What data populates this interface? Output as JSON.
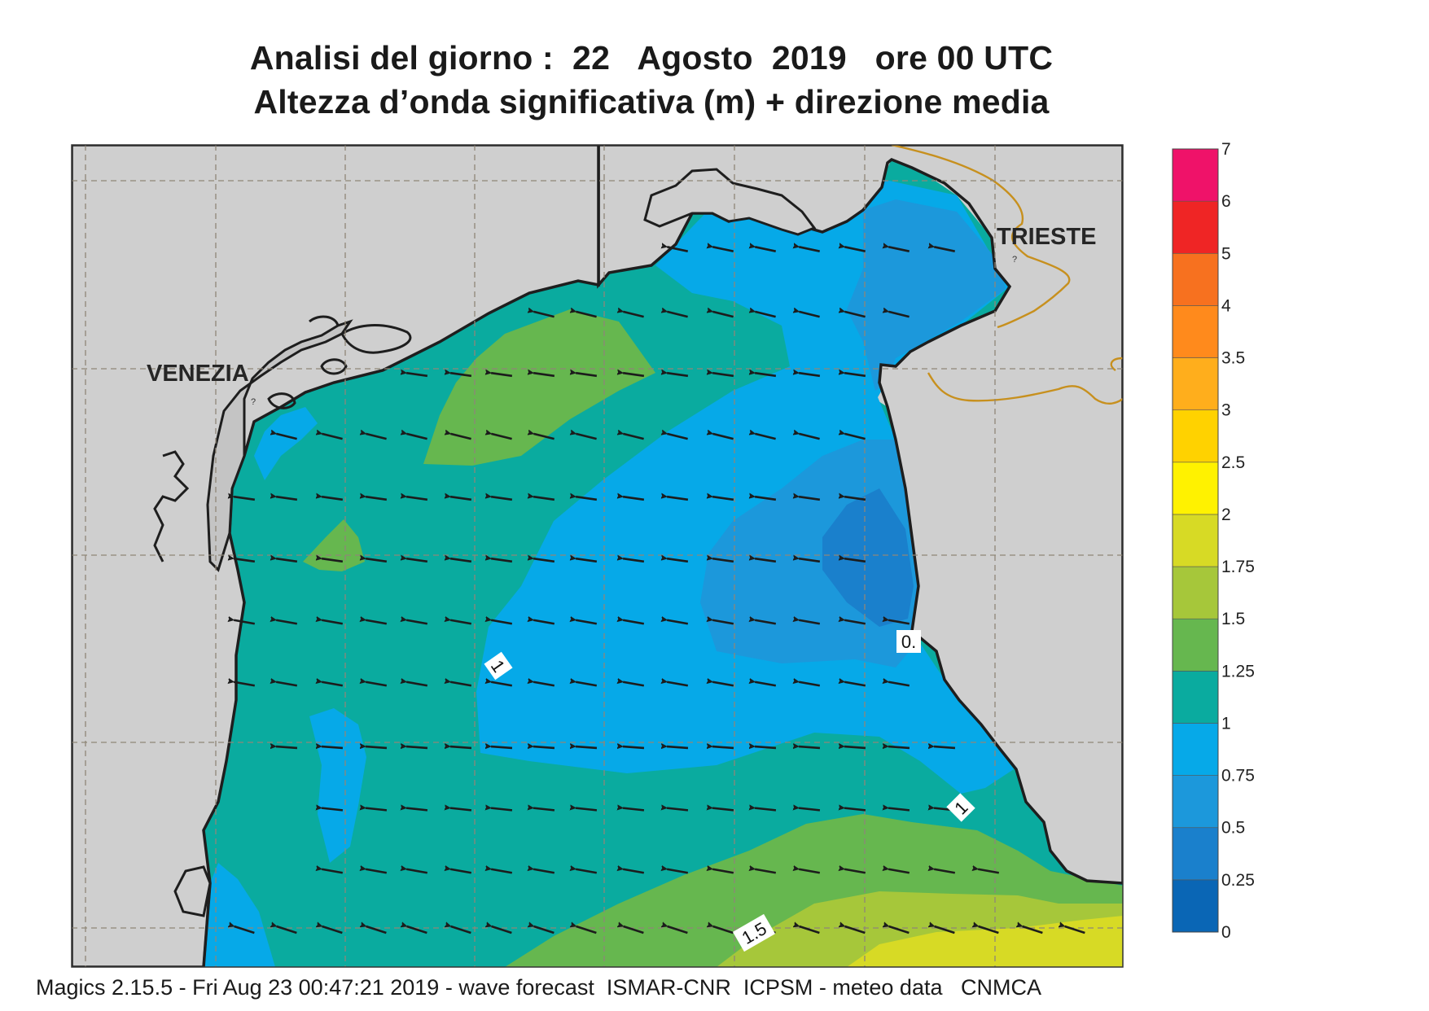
{
  "title": {
    "line1": "Analisi del giorno :  22   Agosto  2019   ore 00 UTC",
    "line2": "Altezza d’onda significativa (m) + direzione media"
  },
  "footer": "Magics 2.15.5 - Fri Aug 23 00:47:21 2019 - wave forecast  ISMAR-CNR  ICPSM - meteo data   CNMCA",
  "places": [
    {
      "id": "venezia",
      "label": "VENEZIA"
    },
    {
      "id": "trieste",
      "label": "TRIESTE"
    }
  ],
  "contour_labels": [
    "1",
    "0.",
    "1",
    "1.5"
  ],
  "colors": {
    "land": "#cfcfcf",
    "coast": "#1e1e1e",
    "border": "#c7901e",
    "graticule": "#8f8678",
    "arrow": "#1c1c1c"
  },
  "legend": {
    "ticks": [
      "0",
      "0.25",
      "0.5",
      "0.75",
      "1",
      "1.25",
      "1.5",
      "1.75",
      "2",
      "2.5",
      "3",
      "3.5",
      "4",
      "5",
      "6",
      "7"
    ],
    "colors": [
      "#0a66b5",
      "#1a80cc",
      "#1c98db",
      "#06a9e8",
      "#0aab9f",
      "#66b74f",
      "#a6c73a",
      "#d7da25",
      "#fff200",
      "#ffd200",
      "#ffae1c",
      "#ff8a1c",
      "#f7711f",
      "#ef2525",
      "#ef1269"
    ]
  }
}
